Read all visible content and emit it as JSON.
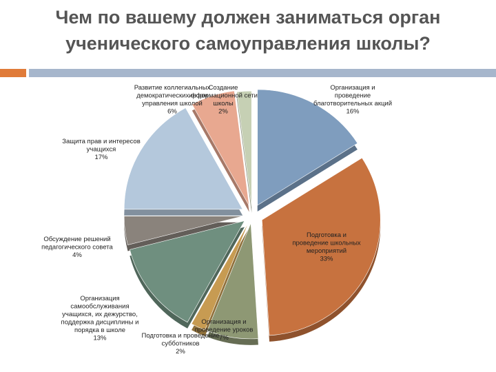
{
  "title": {
    "line1": "Чем по вашему должен заниматься орган",
    "line2": "ученического самоуправления школы?"
  },
  "colors": {
    "title_text": "#555555",
    "accent_square": "#e07b39",
    "rule_bar": "#a6b6cc"
  },
  "chart_data": {
    "type": "pie",
    "style": "exploded 3d",
    "title": "",
    "slices": [
      {
        "label_lines": [
          "Организация и",
          "проведение",
          "благотворительных акций",
          "16%"
        ],
        "value": 16,
        "color": "#7f9dbe"
      },
      {
        "label_lines": [
          "Подготовка и",
          "проведение школьных",
          "мероприятий",
          "33%"
        ],
        "value": 33,
        "color": "#c7723f"
      },
      {
        "label_lines": [
          "Организация и",
          "проведение уроков",
          "7%"
        ],
        "value": 7,
        "color": "#8e9874"
      },
      {
        "label_lines": [
          "Подготовка и проведение",
          "субботников",
          "2%"
        ],
        "value": 2,
        "color": "#c79b52"
      },
      {
        "label_lines": [
          "Организация",
          "самообслуживания",
          "учащихся, их дежурство,",
          "поддержка дисциплины и",
          "порядка в школе",
          "13%"
        ],
        "value": 13,
        "color": "#6f8f7f"
      },
      {
        "label_lines": [
          "Обсуждение решений",
          "педагогического совета",
          "4%"
        ],
        "value": 4,
        "color": "#8a837c"
      },
      {
        "label_lines": [
          "Защита прав и интересов",
          "учащихся",
          "17%"
        ],
        "value": 17,
        "color": "#b4c8dc"
      },
      {
        "label_lines": [
          "Развитие коллегиальных",
          "демократических форм",
          "управления школой",
          "6%"
        ],
        "value": 6,
        "color": "#e8a890"
      },
      {
        "label_lines": [
          "Создание",
          "информационной сети",
          "школы",
          "2%"
        ],
        "value": 2,
        "color": "#c6d0b4"
      }
    ]
  }
}
